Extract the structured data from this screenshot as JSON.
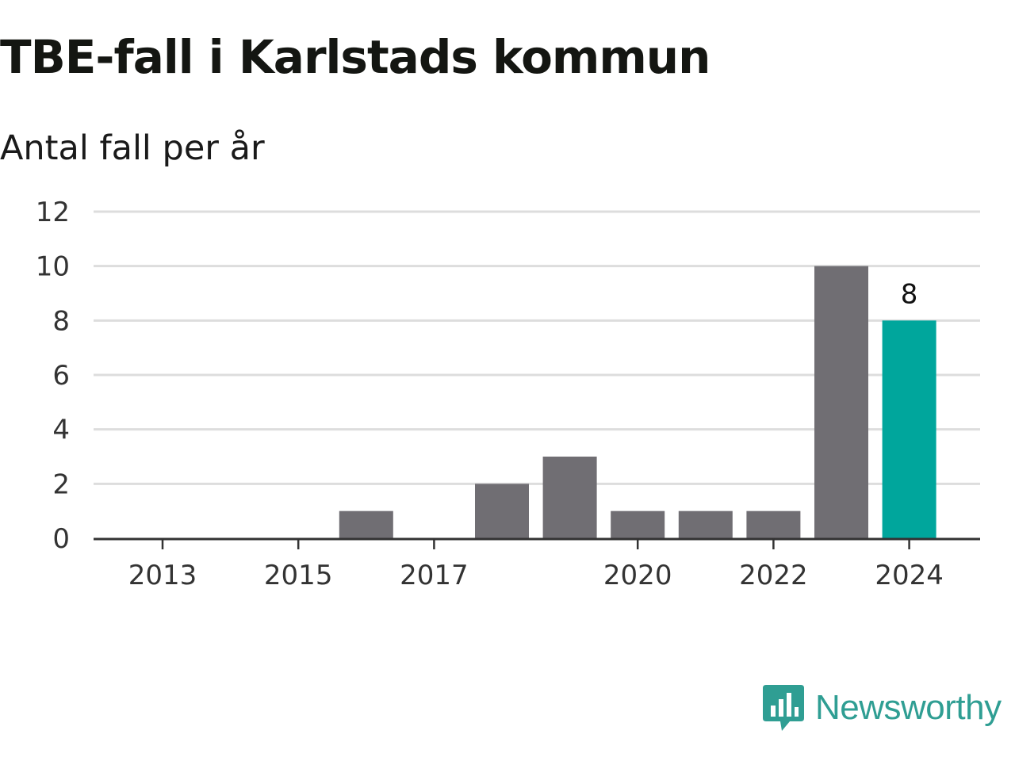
{
  "header": {
    "title": "TBE-fall i Karlstads kommun",
    "subtitle": "Antal fall per år"
  },
  "brand": {
    "name": "Newsworthy",
    "color": "#2f9e93"
  },
  "colors": {
    "bar": "#706e73",
    "highlight": "#00a69c",
    "grid": "#dddddd",
    "axis": "#333333"
  },
  "chart_data": {
    "type": "bar",
    "categories": [
      "2013",
      "2014",
      "2015",
      "2016",
      "2017",
      "2018",
      "2019",
      "2020",
      "2021",
      "2022",
      "2023",
      "2024"
    ],
    "values": [
      0,
      0,
      0,
      1,
      0,
      2,
      3,
      1,
      1,
      1,
      10,
      8
    ],
    "highlight_index": 11,
    "x_tick_labels": [
      "2013",
      "2015",
      "2017",
      "2020",
      "2022",
      "2024"
    ],
    "y_ticks": [
      0,
      2,
      4,
      6,
      8,
      10,
      12
    ],
    "ylim": [
      0,
      12
    ],
    "data_labels": [
      {
        "category": "2024",
        "text": "8"
      }
    ],
    "grid": true,
    "title": "TBE-fall i Karlstads kommun",
    "ylabel": "Antal fall per år",
    "xlabel": ""
  }
}
